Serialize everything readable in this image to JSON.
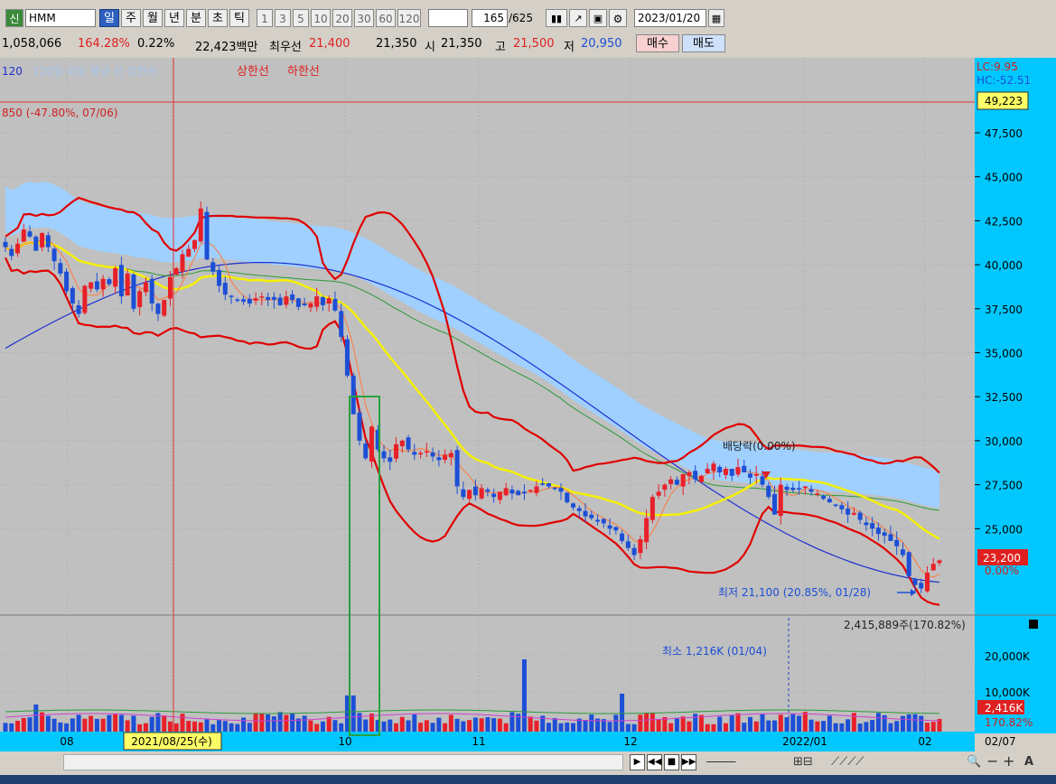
{
  "toolbar": {
    "badge": "신",
    "symbol": "HMM",
    "periods": [
      "일",
      "주",
      "월",
      "년",
      "분",
      "초",
      "틱"
    ],
    "minutes": [
      "1",
      "3",
      "5",
      "10",
      "20",
      "30",
      "60",
      "120"
    ],
    "count": "165",
    "count_total": "/625",
    "date": "2023/01/20",
    "icons": [
      "compare-icon",
      "chart-tools-icon",
      "save-icon",
      "gear-icon",
      "calendar-icon"
    ]
  },
  "quote": {
    "volume_left": "1,058,066",
    "ratio_pct": "164.28%",
    "change_pct": "0.22%",
    "amount": "22,423백만",
    "best_label": "최우선",
    "best_ask": "21,400",
    "best_bid": "21,350",
    "open_label": "시",
    "open": "21,350",
    "high_label": "고",
    "high": "21,500",
    "low_label": "저",
    "low": "20,950",
    "buy": "매수",
    "sell": "매도"
  },
  "legend": {
    "ma_tail": "120",
    "faded": "120일 이동 평균 선 상한선",
    "upper": "상한선",
    "lower": "하한선"
  },
  "annotations": {
    "high_note": "850 (-47.80%, 07/06)",
    "dividend": "배당락(0.00%)",
    "low_note": "최저 21,100 (20.85%, 01/28)",
    "vol_min": "최소 1,216K (01/04)",
    "vol_info": "2,415,889주(170.82%)"
  },
  "axis": {
    "lc": "LC:9.95",
    "hc": "HC:-52.51",
    "high_box": "49,223",
    "price_ticks": [
      "47,500",
      "45,000",
      "42,500",
      "40,000",
      "37,500",
      "35,000",
      "32,500",
      "30,000",
      "27,500",
      "25,000"
    ],
    "current": "23,200",
    "current_pct": "0.00%",
    "vol_ticks": [
      "20,000K",
      "10,000K"
    ],
    "vol_current": "2,416K",
    "vol_pct": "170.82%",
    "x_labels": [
      "08",
      "2021/08/25(수)",
      "10",
      "11",
      "12",
      "2022/01",
      "02"
    ],
    "x_right": "02/07"
  },
  "colors": {
    "bg": "#c0c0c0",
    "axis_bg": "#00c8ff",
    "up": "#e8202a",
    "down": "#1c4fd6",
    "cloud": "#a0d0ff",
    "ma5": "#ff7a3a",
    "ma20": "#f5f000",
    "ma60": "#2a9a3a",
    "ma120": "#1c2fd0",
    "bollinger": "#e00000"
  },
  "chart_data": {
    "type": "candlestick",
    "ylim": [
      20000,
      49500
    ],
    "series": [
      {
        "name": "close",
        "values": [
          41000,
          40500,
          41200,
          42000,
          41600,
          40800,
          41800,
          41000,
          40200,
          39500,
          38500,
          37800,
          37200,
          38800,
          39000,
          38600,
          39200,
          38900,
          39800,
          38200,
          39500,
          37500,
          38500,
          39000,
          37800,
          37200,
          38000,
          39300,
          39800,
          40600,
          40900,
          41400,
          43200,
          40300,
          39600,
          38800,
          38300,
          38200,
          38000,
          37900,
          37800,
          38100,
          38200,
          38000,
          38000,
          37700,
          38200,
          38000,
          37600,
          37700,
          37800,
          38200,
          37700,
          38100,
          37400,
          35900,
          33700,
          31500,
          30000,
          29000,
          30800,
          29500,
          29000,
          28800,
          29800,
          30000,
          29500,
          29200,
          29300,
          29400,
          29100,
          28900,
          29200,
          29300,
          27400,
          26800,
          27200,
          26900,
          27300,
          27100,
          26800,
          27100,
          27300,
          27000,
          26900,
          27000,
          27200,
          27400,
          27500,
          27400,
          27300,
          27100,
          26500,
          26200,
          26000,
          25700,
          25600,
          25400,
          25300,
          25000,
          24900,
          24300,
          23900,
          23500,
          24400,
          25600,
          26800,
          27100,
          27500,
          27800,
          27500,
          28100,
          28200,
          27800,
          28000,
          28400,
          28700,
          28200,
          28400,
          28000,
          28500,
          28200,
          27900,
          28100,
          27500,
          26800,
          25800,
          27500,
          27200,
          27200,
          27300,
          27400,
          27100,
          27000,
          26700,
          26500,
          26300,
          26100,
          25800,
          25900,
          25500,
          25200,
          25000,
          24700,
          24600,
          24300,
          24000,
          23500,
          22300,
          21800,
          21600,
          22500,
          23000,
          23200
        ]
      }
    ],
    "volume_ticks": [
      "20,000K",
      "10,000K"
    ]
  }
}
